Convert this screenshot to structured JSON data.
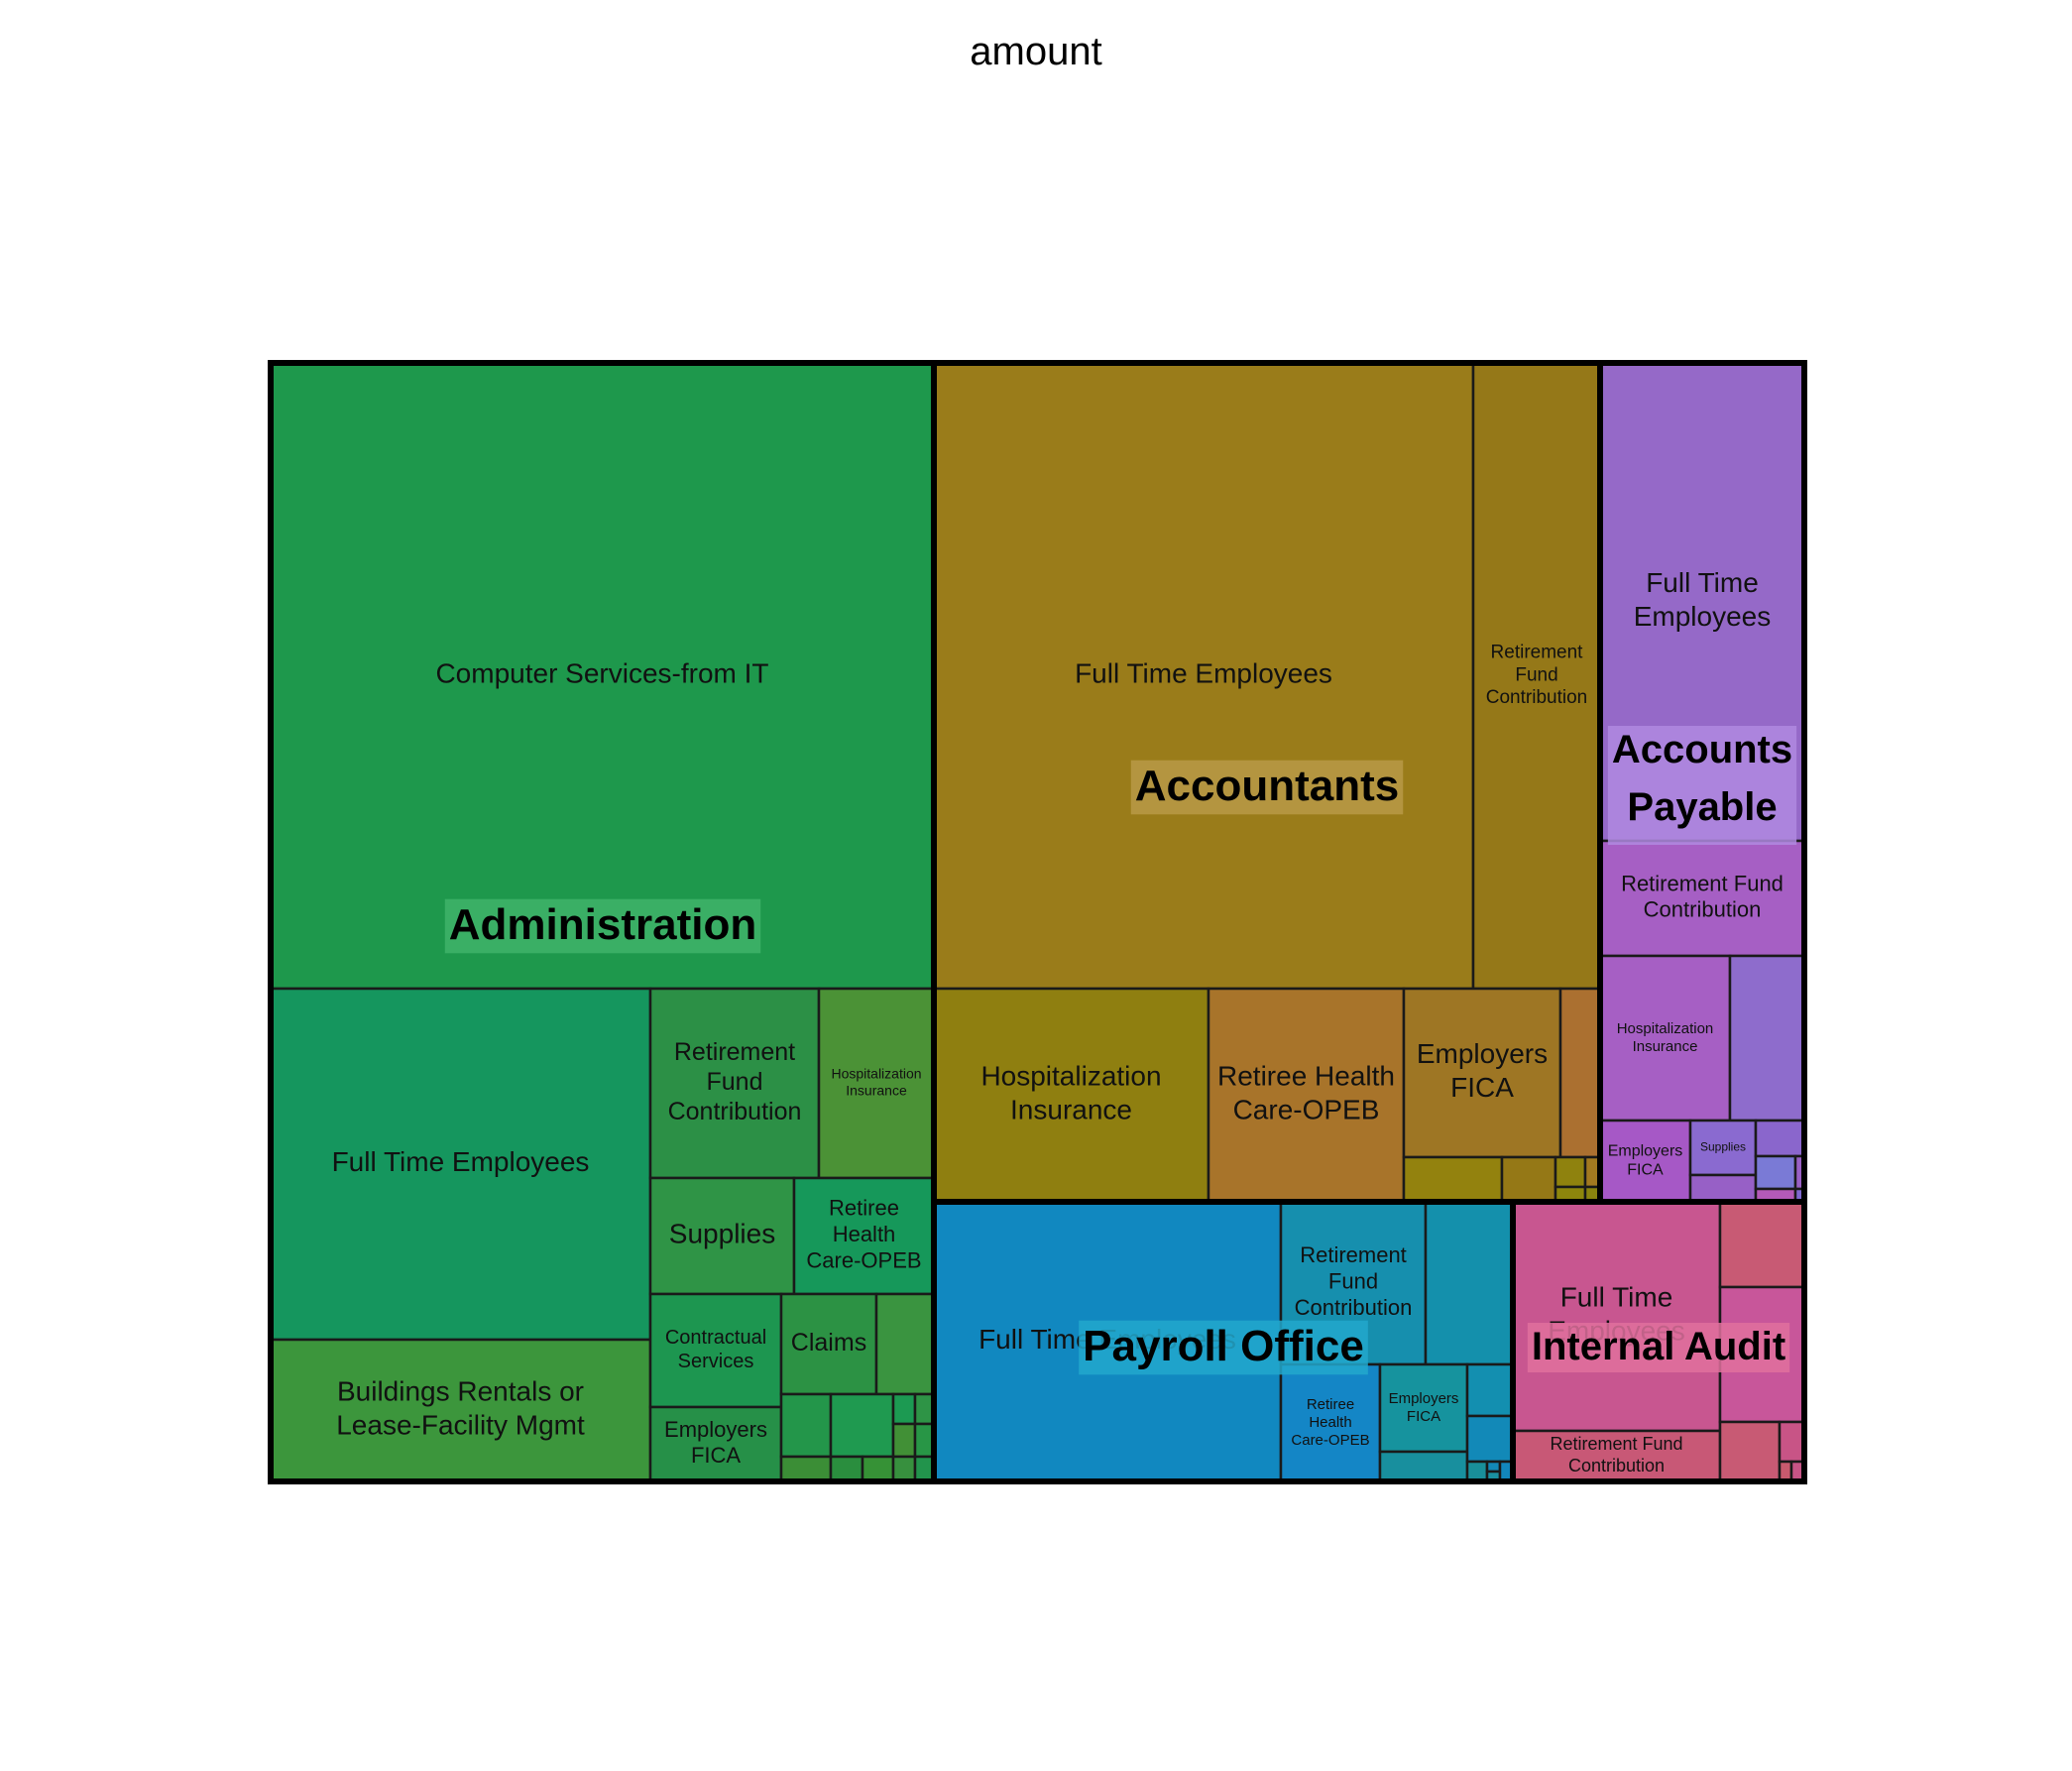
{
  "chart_data": {
    "type": "treemap",
    "title": "amount",
    "groups": [
      {
        "name": "Administration",
        "color": "#1e984c",
        "label_bg": "#3fb36a",
        "items": [
          {
            "label": "Computer Services-from IT",
            "color": "#1e984c"
          },
          {
            "label": "Full Time Employees",
            "color": "#15965e"
          },
          {
            "label": "Buildings Rentals or Lease-Facility Mgmt",
            "color": "#3c963c"
          },
          {
            "label": "Retirement Fund Contribution",
            "color": "#2c9046"
          },
          {
            "label": "Hospitalization Insurance",
            "color": "#4b9236"
          },
          {
            "label": "Supplies",
            "color": "#2f9446"
          },
          {
            "label": "Retiree Health Care-OPEB",
            "color": "#16985a"
          },
          {
            "label": "Contractual Services",
            "color": "#1d9650"
          },
          {
            "label": "Claims",
            "color": "#2c9244"
          },
          {
            "label": "Employers FICA",
            "color": "#269048"
          },
          {
            "label": "",
            "color": "#3a9440"
          },
          {
            "label": "",
            "color": "#23964a"
          },
          {
            "label": "",
            "color": "#3b8e36"
          },
          {
            "label": "",
            "color": "#1f9a50"
          },
          {
            "label": "",
            "color": "#2a8e3e"
          },
          {
            "label": "",
            "color": "#369236"
          },
          {
            "label": "",
            "color": "#1c9a52"
          },
          {
            "label": "",
            "color": "#2e9446"
          },
          {
            "label": "",
            "color": "#419036"
          },
          {
            "label": "",
            "color": "#289646"
          },
          {
            "label": "",
            "color": "#37903e"
          },
          {
            "label": "",
            "color": "#22944c"
          }
        ]
      },
      {
        "name": "Accountants",
        "color": "#9a7c1a",
        "label_bg": "#b89a48",
        "items": [
          {
            "label": "Full Time Employees",
            "color": "#9a7c1a"
          },
          {
            "label": "Retirement Fund Contribution",
            "color": "#957818"
          },
          {
            "label": "Hospitalization Insurance",
            "color": "#8f7f10"
          },
          {
            "label": "Retiree Health Care-OPEB",
            "color": "#a8742a"
          },
          {
            "label": "Employers FICA",
            "color": "#9e7624"
          },
          {
            "label": "",
            "color": "#ab7030"
          },
          {
            "label": "",
            "color": "#93820e"
          },
          {
            "label": "",
            "color": "#957816"
          },
          {
            "label": "",
            "color": "#8f820e"
          },
          {
            "label": "",
            "color": "#8d860c"
          },
          {
            "label": "",
            "color": "#a27a20"
          },
          {
            "label": "",
            "color": "#8a840e"
          }
        ]
      },
      {
        "name": "Accounts Payable",
        "color": "#9569c8",
        "label_bg": "#b08ae0",
        "items": [
          {
            "label": "Full Time Employees",
            "color": "#9569c8"
          },
          {
            "label": "Retirement Fund Contribution",
            "color": "#a65fc4"
          },
          {
            "label": "Hospitalization Insurance",
            "color": "#a65fc4"
          },
          {
            "label": "",
            "color": "#8e6ccc"
          },
          {
            "label": "Employers FICA",
            "color": "#a658c6"
          },
          {
            "label": "Supplies",
            "color": "#8a6ad0"
          },
          {
            "label": "",
            "color": "#9760c6"
          },
          {
            "label": "",
            "color": "#8a66cc"
          },
          {
            "label": "",
            "color": "#7a7ad6"
          },
          {
            "label": "",
            "color": "#9a60c4"
          },
          {
            "label": "",
            "color": "#b45ab8"
          },
          {
            "label": "",
            "color": "#8068d0"
          }
        ]
      },
      {
        "name": "Payroll Office",
        "color": "#1188c0",
        "label_bg": "#22a8cc",
        "items": [
          {
            "label": "Full Time Employees",
            "color": "#1188c0"
          },
          {
            "label": "Retirement Fund Contribution",
            "color": "#168fae"
          },
          {
            "label": "",
            "color": "#1490ac"
          },
          {
            "label": "Retiree Health Care-OPEB",
            "color": "#1486c6"
          },
          {
            "label": "Employers FICA",
            "color": "#16939e"
          },
          {
            "label": "",
            "color": "#138fb0"
          },
          {
            "label": "",
            "color": "#188f9e"
          },
          {
            "label": "",
            "color": "#1289b8"
          },
          {
            "label": "",
            "color": "#198f9a"
          },
          {
            "label": "",
            "color": "#1388b6"
          },
          {
            "label": "",
            "color": "#1a90a0"
          },
          {
            "label": "",
            "color": "#1286bc"
          }
        ]
      },
      {
        "name": "Internal Audit",
        "color": "#c85690",
        "label_bg": "#e0709e",
        "items": [
          {
            "label": "Full Time Employees",
            "color": "#c85690"
          },
          {
            "label": "",
            "color": "#c85a74"
          },
          {
            "label": "",
            "color": "#c8569a"
          },
          {
            "label": "Retirement Fund Contribution",
            "color": "#c85876"
          },
          {
            "label": "",
            "color": "#c85a74"
          },
          {
            "label": "",
            "color": "#c85486"
          },
          {
            "label": "",
            "color": "#c85a6e"
          },
          {
            "label": "",
            "color": "#c65486"
          }
        ]
      }
    ]
  }
}
